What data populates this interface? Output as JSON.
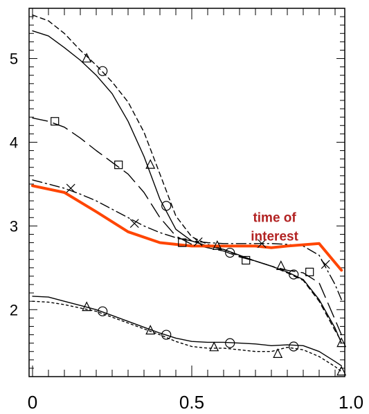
{
  "chart_data": {
    "type": "line",
    "title": "",
    "xlabel": "",
    "ylabel": "",
    "xlim": [
      0,
      1.0
    ],
    "ylim": [
      1.2,
      5.6
    ],
    "grid": false,
    "legend": "none",
    "x_ticks": [
      {
        "value": 0,
        "label": "0"
      },
      {
        "value": 0.5,
        "label": "0.5"
      },
      {
        "value": 1.0,
        "label": "1.0"
      }
    ],
    "y_ticks": [
      {
        "value": 2,
        "label": "2"
      },
      {
        "value": 3,
        "label": "3"
      },
      {
        "value": 4,
        "label": "4"
      },
      {
        "value": 5,
        "label": "5"
      }
    ],
    "x_minor_step": 0.05,
    "y_minor_step": 0.1,
    "annotation": {
      "lines": [
        "time of",
        "interest"
      ],
      "x": 0.76,
      "y": 3.05,
      "color": "#b22222"
    },
    "series": [
      {
        "style": "dashed",
        "color": "#000000",
        "marker": "none",
        "x": [
          0.0,
          0.05,
          0.1,
          0.15,
          0.2,
          0.25,
          0.3,
          0.35,
          0.4,
          0.45,
          0.5,
          0.55,
          0.6,
          0.65,
          0.7,
          0.75,
          0.8,
          0.85,
          0.9,
          0.95,
          0.97
        ],
        "y": [
          5.52,
          5.45,
          5.3,
          5.1,
          4.92,
          4.72,
          4.48,
          4.12,
          3.62,
          3.12,
          2.87,
          2.78,
          2.72,
          2.64,
          2.58,
          2.52,
          2.44,
          2.35,
          2.1,
          1.75,
          1.62
        ]
      },
      {
        "style": "solid",
        "color": "#000000",
        "marker": "triangle",
        "x": [
          0.0,
          0.05,
          0.1,
          0.15,
          0.2,
          0.25,
          0.3,
          0.35,
          0.4,
          0.45,
          0.5,
          0.55,
          0.6,
          0.65,
          0.7,
          0.75,
          0.8,
          0.85,
          0.9,
          0.95,
          0.97
        ],
        "y": [
          5.33,
          5.27,
          5.13,
          4.98,
          4.8,
          4.58,
          4.25,
          3.83,
          3.32,
          2.96,
          2.82,
          2.76,
          2.72,
          2.65,
          2.58,
          2.52,
          2.45,
          2.36,
          2.12,
          1.78,
          1.6
        ],
        "marker_points": [
          [
            0.17,
            5.0
          ],
          [
            0.37,
            3.73
          ],
          [
            0.58,
            2.76
          ],
          [
            0.78,
            2.52
          ],
          [
            0.97,
            1.6
          ]
        ]
      },
      {
        "style": "none",
        "color": "#000000",
        "marker": "circle",
        "x": [],
        "y": [],
        "marker_points": [
          [
            0.22,
            4.85
          ],
          [
            0.42,
            3.24
          ],
          [
            0.62,
            2.68
          ],
          [
            0.82,
            2.42
          ]
        ]
      },
      {
        "style": "longdash",
        "color": "#000000",
        "marker": "square",
        "x": [
          0.0,
          0.05,
          0.1,
          0.15,
          0.2,
          0.25,
          0.3,
          0.35,
          0.4,
          0.45,
          0.5,
          0.55,
          0.6,
          0.65,
          0.7,
          0.75,
          0.8,
          0.85,
          0.9,
          0.95,
          0.97
        ],
        "y": [
          4.29,
          4.25,
          4.18,
          4.05,
          3.9,
          3.76,
          3.62,
          3.4,
          3.1,
          2.88,
          2.78,
          2.74,
          2.7,
          2.63,
          2.58,
          2.52,
          2.47,
          2.44,
          2.32,
          1.88,
          1.7
        ],
        "marker_points": [
          [
            0.07,
            4.25
          ],
          [
            0.27,
            3.73
          ],
          [
            0.47,
            2.8
          ],
          [
            0.67,
            2.59
          ],
          [
            0.87,
            2.45
          ]
        ]
      },
      {
        "style": "dashdot",
        "color": "#000000",
        "marker": "x",
        "x": [
          0.0,
          0.05,
          0.1,
          0.15,
          0.2,
          0.25,
          0.3,
          0.35,
          0.4,
          0.45,
          0.5,
          0.55,
          0.6,
          0.65,
          0.7,
          0.75,
          0.8,
          0.85,
          0.9,
          0.95,
          0.97
        ],
        "y": [
          3.55,
          3.5,
          3.45,
          3.38,
          3.3,
          3.2,
          3.1,
          3.0,
          2.92,
          2.86,
          2.82,
          2.8,
          2.79,
          2.79,
          2.79,
          2.79,
          2.78,
          2.76,
          2.65,
          2.3,
          2.12
        ],
        "marker_points": [
          [
            0.12,
            3.45
          ],
          [
            0.32,
            3.03
          ],
          [
            0.52,
            2.81
          ],
          [
            0.72,
            2.79
          ],
          [
            0.92,
            2.54
          ]
        ]
      },
      {
        "style": "solid",
        "color": "#ff4500",
        "width": 4,
        "marker": "none",
        "x": [
          0.0,
          0.1,
          0.2,
          0.3,
          0.4,
          0.5,
          0.6,
          0.7,
          0.75,
          0.8,
          0.9,
          0.97
        ],
        "y": [
          3.48,
          3.4,
          3.17,
          2.93,
          2.8,
          2.76,
          2.76,
          2.76,
          2.74,
          2.76,
          2.79,
          2.47
        ]
      },
      {
        "style": "solid",
        "color": "#000000",
        "marker": "triangle",
        "x": [
          0.0,
          0.05,
          0.1,
          0.15,
          0.2,
          0.25,
          0.3,
          0.35,
          0.4,
          0.45,
          0.5,
          0.55,
          0.6,
          0.65,
          0.7,
          0.75,
          0.8,
          0.85,
          0.9,
          0.95,
          0.97
        ],
        "y": [
          2.16,
          2.15,
          2.1,
          2.05,
          2.0,
          1.93,
          1.86,
          1.79,
          1.72,
          1.66,
          1.62,
          1.61,
          1.61,
          1.6,
          1.59,
          1.57,
          1.58,
          1.57,
          1.5,
          1.38,
          1.33
        ],
        "marker_points": [
          [
            0.17,
            2.03
          ],
          [
            0.37,
            1.75
          ],
          [
            0.57,
            1.55
          ],
          [
            0.77,
            1.47
          ],
          [
            0.97,
            1.26
          ]
        ]
      },
      {
        "style": "dotted",
        "color": "#000000",
        "marker": "circle",
        "x": [
          0.0,
          0.05,
          0.1,
          0.15,
          0.2,
          0.25,
          0.3,
          0.35,
          0.4,
          0.45,
          0.5,
          0.55,
          0.6,
          0.65,
          0.7,
          0.75,
          0.8,
          0.85,
          0.9,
          0.95,
          0.97
        ],
        "y": [
          2.1,
          2.09,
          2.06,
          2.02,
          1.98,
          1.91,
          1.84,
          1.77,
          1.7,
          1.62,
          1.56,
          1.54,
          1.54,
          1.52,
          1.5,
          1.5,
          1.55,
          1.52,
          1.44,
          1.32,
          1.26
        ],
        "marker_points": [
          [
            0.22,
            1.98
          ],
          [
            0.42,
            1.7
          ],
          [
            0.62,
            1.6
          ],
          [
            0.82,
            1.56
          ]
        ]
      }
    ]
  }
}
